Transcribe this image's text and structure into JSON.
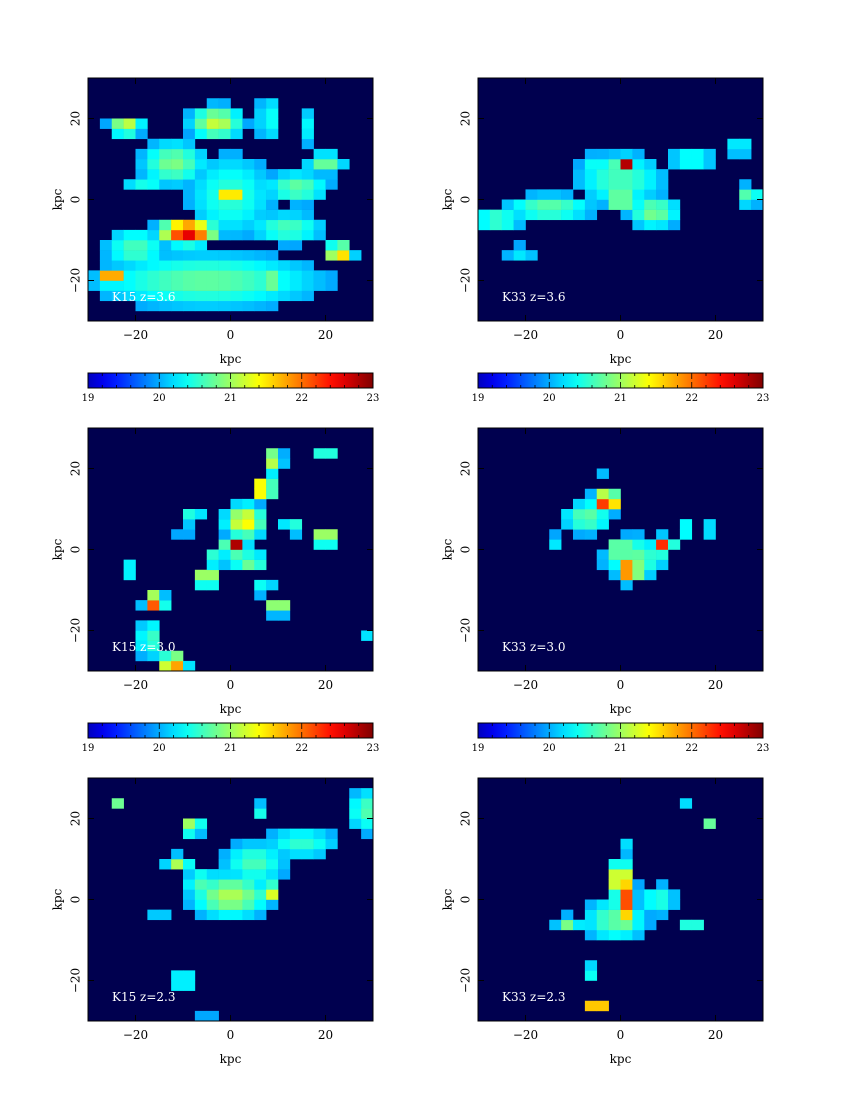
{
  "chart_data": {
    "type": "heatmap",
    "colormap": "jet",
    "background_color": "#00004f",
    "axis_unit_label": "kpc",
    "x_range": [
      -30,
      30
    ],
    "y_range": [
      -30,
      30
    ],
    "x_ticks": [
      -20,
      0,
      20
    ],
    "y_ticks": [
      -20,
      0,
      20
    ],
    "x_tick_labels": [
      "−20",
      "0",
      "20"
    ],
    "y_tick_labels": [
      "−20",
      "0",
      "20"
    ],
    "colorbar": {
      "range": [
        19,
        23
      ],
      "ticks": [
        19,
        20,
        21,
        22,
        23
      ],
      "tick_labels": [
        "19",
        "20",
        "21",
        "22",
        "23"
      ]
    },
    "panels": [
      {
        "label": "K15 z=3.6",
        "blobs": [
          {
            "x": 0,
            "y": 1,
            "sx": 7,
            "sy": 8,
            "v": 20.7
          },
          {
            "x": 0,
            "y": 1,
            "sx": 1.2,
            "sy": 1.5,
            "v": 22.9
          },
          {
            "x": -9,
            "y": -8,
            "sx": 4,
            "sy": 2,
            "v": 22.8
          },
          {
            "x": -5,
            "y": -20,
            "sx": 18,
            "sy": 5,
            "v": 20.9
          },
          {
            "x": 8,
            "y": -20,
            "sx": 2,
            "sy": 1,
            "v": 22.4
          },
          {
            "x": -25,
            "y": -19,
            "sx": 2,
            "sy": 1.5,
            "v": 22.3
          },
          {
            "x": 23,
            "y": -13,
            "sx": 2,
            "sy": 1.5,
            "v": 22.0
          },
          {
            "x": -22,
            "y": 18,
            "sx": 2.5,
            "sy": 1.5,
            "v": 21.5
          },
          {
            "x": -3,
            "y": 19,
            "sx": 4,
            "sy": 3,
            "v": 21.3
          },
          {
            "x": -12,
            "y": 9,
            "sx": 5,
            "sy": 4,
            "v": 21.0
          },
          {
            "x": 14,
            "y": 3,
            "sx": 5,
            "sy": 3,
            "v": 20.9
          },
          {
            "x": 12,
            "y": -7,
            "sx": 6,
            "sy": 3,
            "v": 20.8
          },
          {
            "x": 20,
            "y": 9,
            "sx": 3,
            "sy": 2,
            "v": 21.0
          },
          {
            "x": -20,
            "y": -12,
            "sx": 5,
            "sy": 4,
            "v": 20.8
          },
          {
            "x": 8,
            "y": 20,
            "sx": 2,
            "sy": 5,
            "v": 20.6
          },
          {
            "x": 16,
            "y": 18,
            "sx": 1.5,
            "sy": 4,
            "v": 20.5
          },
          {
            "x": -18,
            "y": 4,
            "sx": 4,
            "sy": 2,
            "v": 20.6
          }
        ]
      },
      {
        "label": "K33 z=3.6",
        "blobs": [
          {
            "x": 0,
            "y": 5,
            "sx": 7,
            "sy": 5,
            "v": 20.8
          },
          {
            "x": 1,
            "y": 9,
            "sx": 1.5,
            "sy": 1.2,
            "v": 22.9
          },
          {
            "x": 0,
            "y": 0,
            "sx": 1.5,
            "sy": 1.2,
            "v": 22.4
          },
          {
            "x": 7,
            "y": -3,
            "sx": 4,
            "sy": 3,
            "v": 21.0
          },
          {
            "x": -15,
            "y": -2,
            "sx": 7,
            "sy": 2.5,
            "v": 20.9
          },
          {
            "x": -26,
            "y": -5,
            "sx": 4,
            "sy": 2.5,
            "v": 20.8
          },
          {
            "x": 15,
            "y": 10,
            "sx": 4,
            "sy": 2,
            "v": 20.7
          },
          {
            "x": 25,
            "y": 13,
            "sx": 2,
            "sy": 2,
            "v": 20.6
          },
          {
            "x": 27,
            "y": 1,
            "sx": 2,
            "sy": 2,
            "v": 20.9
          },
          {
            "x": -21,
            "y": -13,
            "sx": 3,
            "sy": 1.5,
            "v": 20.5
          },
          {
            "x": 5,
            "y": 20,
            "sx": 1,
            "sy": 2,
            "v": 20.6
          },
          {
            "x": -5,
            "y": 9,
            "sx": 3,
            "sy": 2,
            "v": 20.6
          }
        ]
      },
      {
        "label": "K15 z=3.0",
        "blobs": [
          {
            "x": 1,
            "y": 1,
            "sx": 1.5,
            "sy": 1.5,
            "v": 22.9
          },
          {
            "x": 3,
            "y": 7,
            "sx": 3,
            "sy": 3,
            "v": 21.6
          },
          {
            "x": 7,
            "y": 15,
            "sx": 1.5,
            "sy": 1.5,
            "v": 22.5
          },
          {
            "x": 9,
            "y": 22,
            "sx": 1.5,
            "sy": 2.5,
            "v": 21.3
          },
          {
            "x": -16,
            "y": -13,
            "sx": 1.5,
            "sy": 1.5,
            "v": 22.5
          },
          {
            "x": -12,
            "y": -28,
            "sx": 2,
            "sy": 1.5,
            "v": 22.3
          },
          {
            "x": 20,
            "y": 23,
            "sx": 1,
            "sy": 1,
            "v": 22.2
          },
          {
            "x": 20,
            "y": 3,
            "sx": 2,
            "sy": 1.5,
            "v": 21.6
          },
          {
            "x": -5,
            "y": -7,
            "sx": 2,
            "sy": 1.5,
            "v": 21.6
          },
          {
            "x": 10,
            "y": -14,
            "sx": 1.5,
            "sy": 1.5,
            "v": 21.6
          },
          {
            "x": 4,
            "y": -3,
            "sx": 3,
            "sy": 2,
            "v": 21.0
          },
          {
            "x": -3,
            "y": -2,
            "sx": 2,
            "sy": 2,
            "v": 20.8
          },
          {
            "x": -17,
            "y": -22,
            "sx": 2,
            "sy": 4,
            "v": 20.8
          },
          {
            "x": -8,
            "y": 8,
            "sx": 2,
            "sy": 1.5,
            "v": 20.8
          },
          {
            "x": 13,
            "y": 6,
            "sx": 2,
            "sy": 2,
            "v": 20.7
          },
          {
            "x": -21,
            "y": -5,
            "sx": 2,
            "sy": 2,
            "v": 20.6
          },
          {
            "x": -10,
            "y": 4,
            "sx": 1,
            "sy": 1,
            "v": 20.6
          },
          {
            "x": 7,
            "y": -9,
            "sx": 2,
            "sy": 2,
            "v": 20.6
          },
          {
            "x": -15,
            "y": 2,
            "sx": 1,
            "sy": 1,
            "v": 20.5
          },
          {
            "x": 29,
            "y": -22,
            "sx": 1,
            "sy": 1,
            "v": 20.6
          }
        ]
      },
      {
        "label": "K33 z=3.0",
        "blobs": [
          {
            "x": -3,
            "y": 12,
            "sx": 2,
            "sy": 1.5,
            "v": 22.8
          },
          {
            "x": 0,
            "y": 0,
            "sx": 1.2,
            "sy": 1.2,
            "v": 22.9
          },
          {
            "x": 2,
            "y": -5,
            "sx": 1.5,
            "sy": 2,
            "v": 22.7
          },
          {
            "x": 9,
            "y": 1,
            "sx": 1.5,
            "sy": 1.5,
            "v": 22.4
          },
          {
            "x": -7,
            "y": 8,
            "sx": 4,
            "sy": 3,
            "v": 20.9
          },
          {
            "x": 3,
            "y": -2,
            "sx": 5,
            "sy": 4,
            "v": 20.9
          },
          {
            "x": 14,
            "y": 5,
            "sx": 1.5,
            "sy": 1.5,
            "v": 20.8
          },
          {
            "x": 19,
            "y": 5,
            "sx": 1.5,
            "sy": 1.5,
            "v": 20.6
          },
          {
            "x": -14,
            "y": 2,
            "sx": 2,
            "sy": 1.5,
            "v": 20.5
          },
          {
            "x": 0,
            "y": -18,
            "sx": 1,
            "sy": 1,
            "v": 20.5
          },
          {
            "x": -3,
            "y": 19,
            "sx": 1,
            "sy": 1,
            "v": 20.4
          }
        ]
      },
      {
        "label": "K15 z=2.3",
        "blobs": [
          {
            "x": 0,
            "y": 0,
            "sx": 1.5,
            "sy": 1,
            "v": 22.9
          },
          {
            "x": 0,
            "y": 1,
            "sx": 6,
            "sy": 4,
            "v": 21.2
          },
          {
            "x": -8,
            "y": 18,
            "sx": 1.5,
            "sy": 1.5,
            "v": 21.5
          },
          {
            "x": 8,
            "y": 2,
            "sx": 1.5,
            "sy": 1.5,
            "v": 21.8
          },
          {
            "x": -11,
            "y": 9,
            "sx": 2,
            "sy": 1.5,
            "v": 21.2
          },
          {
            "x": -24,
            "y": 24,
            "sx": 1,
            "sy": 1,
            "v": 21.0
          },
          {
            "x": 5,
            "y": 9,
            "sx": 5,
            "sy": 4,
            "v": 20.8
          },
          {
            "x": 15,
            "y": 14,
            "sx": 6,
            "sy": 3,
            "v": 20.7
          },
          {
            "x": -6,
            "y": 4,
            "sx": 3,
            "sy": 3,
            "v": 20.8
          },
          {
            "x": -10,
            "y": -20,
            "sx": 2,
            "sy": 1.5,
            "v": 20.9
          },
          {
            "x": 28,
            "y": 22,
            "sx": 2,
            "sy": 4,
            "v": 20.9
          },
          {
            "x": 6,
            "y": 22,
            "sx": 1.5,
            "sy": 1.5,
            "v": 20.7
          },
          {
            "x": -15,
            "y": -4,
            "sx": 1.5,
            "sy": 1.5,
            "v": 20.5
          },
          {
            "x": -5,
            "y": -29,
            "sx": 1,
            "sy": 1,
            "v": 20.6
          },
          {
            "x": 25,
            "y": -3,
            "sx": 1,
            "sy": 1,
            "v": 20.5
          }
        ]
      },
      {
        "label": "K33 z=2.3",
        "blobs": [
          {
            "x": 1,
            "y": 0,
            "sx": 1.5,
            "sy": 5,
            "v": 22.3
          },
          {
            "x": 0,
            "y": 5,
            "sx": 2,
            "sy": 3,
            "v": 21.8
          },
          {
            "x": -1,
            "y": -5,
            "sx": 5,
            "sy": 4,
            "v": 20.9
          },
          {
            "x": -5,
            "y": -26,
            "sx": 1.5,
            "sy": 1,
            "v": 22.6
          },
          {
            "x": 18,
            "y": 19,
            "sx": 1,
            "sy": 1,
            "v": 21.3
          },
          {
            "x": -11,
            "y": -6,
            "sx": 2,
            "sy": 1.5,
            "v": 21.0
          },
          {
            "x": 8,
            "y": 0,
            "sx": 3,
            "sy": 3,
            "v": 20.7
          },
          {
            "x": 15,
            "y": -6,
            "sx": 1.5,
            "sy": 1,
            "v": 21.0
          },
          {
            "x": -6,
            "y": -18,
            "sx": 1.5,
            "sy": 2,
            "v": 20.6
          },
          {
            "x": 14,
            "y": 24,
            "sx": 1,
            "sy": 1,
            "v": 20.4
          },
          {
            "x": 2,
            "y": 13,
            "sx": 1.5,
            "sy": 2,
            "v": 20.5
          },
          {
            "x": -20,
            "y": -5,
            "sx": 1.5,
            "sy": 1,
            "v": 20.3
          }
        ]
      }
    ]
  }
}
